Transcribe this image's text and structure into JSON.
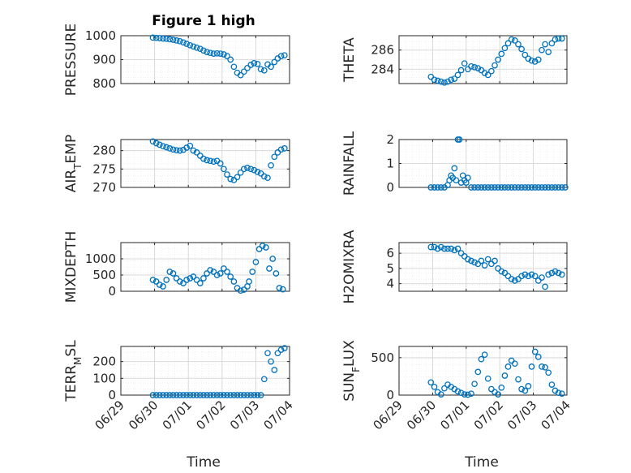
{
  "figure": {
    "title": "Figure 1 high",
    "xlabel": "Time",
    "marker_color": "#0072BD",
    "xticks": [
      "06/29",
      "06/30",
      "07/01",
      "07/02",
      "07/03",
      "07/04"
    ]
  },
  "chart_data": [
    {
      "type": "scatter",
      "title": "Figure 1 high",
      "xlabel": "",
      "ylabel": "PRESSURE",
      "xlim": [
        0,
        5
      ],
      "ylim": [
        800,
        1000
      ],
      "yticks": [
        800,
        900,
        1000
      ],
      "grid": true,
      "x": [
        0.95,
        1.05,
        1.15,
        1.25,
        1.35,
        1.45,
        1.55,
        1.65,
        1.75,
        1.85,
        1.95,
        2.05,
        2.15,
        2.25,
        2.35,
        2.45,
        2.55,
        2.65,
        2.75,
        2.85,
        2.95,
        3.05,
        3.15,
        3.25,
        3.35,
        3.45,
        3.55,
        3.65,
        3.75,
        3.85,
        3.95,
        4.05,
        4.15,
        4.25,
        4.35,
        4.45,
        4.55,
        4.65,
        4.75,
        4.85
      ],
      "y": [
        992,
        991,
        990,
        988,
        987,
        985,
        983,
        980,
        977,
        972,
        966,
        960,
        955,
        950,
        945,
        938,
        932,
        928,
        925,
        926,
        925,
        922,
        915,
        900,
        870,
        845,
        835,
        850,
        865,
        878,
        885,
        882,
        860,
        855,
        880,
        870,
        890,
        905,
        915,
        918
      ]
    },
    {
      "type": "scatter",
      "ylabel": "THETA",
      "xlim": [
        0,
        5
      ],
      "ylim": [
        282.5,
        287.5
      ],
      "yticks": [
        284,
        286
      ],
      "grid": true,
      "x": [
        0.95,
        1.05,
        1.15,
        1.25,
        1.35,
        1.45,
        1.55,
        1.65,
        1.75,
        1.85,
        1.95,
        2.05,
        2.15,
        2.25,
        2.35,
        2.45,
        2.55,
        2.65,
        2.75,
        2.85,
        2.95,
        3.05,
        3.15,
        3.25,
        3.35,
        3.45,
        3.55,
        3.65,
        3.75,
        3.85,
        3.95,
        4.05,
        4.15,
        4.25,
        4.35,
        4.45,
        4.55,
        4.65,
        4.75,
        4.85
      ],
      "y": [
        283.2,
        282.9,
        282.8,
        282.7,
        282.6,
        282.7,
        282.9,
        283.0,
        283.4,
        283.9,
        284.6,
        284.0,
        284.3,
        284.2,
        284.1,
        283.9,
        283.6,
        283.4,
        283.8,
        284.4,
        285.0,
        285.6,
        286.2,
        286.7,
        287.1,
        287.0,
        286.6,
        286.1,
        285.5,
        285.1,
        284.9,
        284.8,
        285.0,
        286.0,
        286.6,
        285.8,
        286.7,
        287.1,
        287.2,
        287.2
      ]
    },
    {
      "type": "scatter",
      "ylabel": "AIR_TEMP",
      "xlim": [
        0,
        5
      ],
      "ylim": [
        270,
        283
      ],
      "yticks": [
        270,
        275,
        280
      ],
      "grid": true,
      "x": [
        0.95,
        1.05,
        1.15,
        1.25,
        1.35,
        1.45,
        1.55,
        1.65,
        1.75,
        1.85,
        1.95,
        2.05,
        2.15,
        2.25,
        2.35,
        2.45,
        2.55,
        2.65,
        2.75,
        2.85,
        2.95,
        3.05,
        3.15,
        3.25,
        3.35,
        3.45,
        3.55,
        3.65,
        3.75,
        3.85,
        3.95,
        4.05,
        4.15,
        4.25,
        4.35,
        4.45,
        4.55,
        4.65,
        4.75,
        4.85
      ],
      "y": [
        282.5,
        282.0,
        281.6,
        281.2,
        280.9,
        280.6,
        280.3,
        280.1,
        280.0,
        280.2,
        280.8,
        281.3,
        280.0,
        279.5,
        278.6,
        277.8,
        277.4,
        277.2,
        277.0,
        277.2,
        276.5,
        275.0,
        273.5,
        272.3,
        272.0,
        272.8,
        274.0,
        275.0,
        275.3,
        275.0,
        274.7,
        274.2,
        273.8,
        273.0,
        272.6,
        276.0,
        278.3,
        279.5,
        280.3,
        280.6
      ]
    },
    {
      "type": "scatter",
      "ylabel": "RAINFALL",
      "xlim": [
        0,
        5
      ],
      "ylim": [
        0,
        2
      ],
      "yticks": [
        0,
        1,
        2
      ],
      "grid": true,
      "x": [
        0.95,
        1.05,
        1.15,
        1.25,
        1.35,
        1.45,
        1.5,
        1.55,
        1.6,
        1.65,
        1.7,
        1.75,
        1.8,
        1.85,
        1.9,
        1.95,
        2.0,
        2.05,
        2.15,
        2.25,
        2.35,
        2.45,
        2.55,
        2.65,
        2.75,
        2.85,
        2.95,
        3.05,
        3.15,
        3.25,
        3.35,
        3.45,
        3.55,
        3.65,
        3.75,
        3.85,
        3.95,
        4.05,
        4.15,
        4.25,
        4.35,
        4.45,
        4.55,
        4.65,
        4.75,
        4.85,
        4.95
      ],
      "y": [
        0,
        0,
        0,
        0,
        0,
        0.1,
        0.3,
        0.5,
        0.4,
        0.8,
        0.3,
        2.0,
        2.0,
        0.2,
        0.5,
        0.3,
        0.2,
        0.4,
        0,
        0,
        0,
        0,
        0,
        0,
        0,
        0,
        0,
        0,
        0,
        0,
        0,
        0,
        0,
        0,
        0,
        0,
        0,
        0,
        0,
        0,
        0,
        0,
        0,
        0,
        0,
        0,
        0
      ]
    },
    {
      "type": "scatter",
      "ylabel": "MIXDEPTH",
      "xlim": [
        0,
        5
      ],
      "ylim": [
        0,
        1500
      ],
      "yticks": [
        0,
        500,
        1000
      ],
      "grid": true,
      "x": [
        0.95,
        1.05,
        1.15,
        1.25,
        1.35,
        1.45,
        1.55,
        1.65,
        1.75,
        1.85,
        1.95,
        2.05,
        2.15,
        2.25,
        2.35,
        2.45,
        2.55,
        2.65,
        2.75,
        2.85,
        2.95,
        3.05,
        3.15,
        3.25,
        3.35,
        3.45,
        3.55,
        3.65,
        3.75,
        3.8,
        3.9,
        4.0,
        4.1,
        4.2,
        4.3,
        4.4,
        4.5,
        4.6,
        4.7,
        4.8
      ],
      "y": [
        350,
        300,
        200,
        150,
        350,
        600,
        550,
        400,
        300,
        250,
        350,
        400,
        450,
        350,
        250,
        400,
        550,
        650,
        600,
        500,
        550,
        700,
        600,
        450,
        300,
        100,
        20,
        50,
        150,
        300,
        600,
        900,
        1300,
        1400,
        1350,
        700,
        1000,
        550,
        100,
        60
      ]
    },
    {
      "type": "scatter",
      "ylabel": "H2OMIXRA",
      "xlim": [
        0,
        5
      ],
      "ylim": [
        3.5,
        6.7
      ],
      "yticks": [
        4,
        5,
        6
      ],
      "grid": true,
      "x": [
        0.95,
        1.05,
        1.15,
        1.25,
        1.35,
        1.45,
        1.55,
        1.65,
        1.75,
        1.85,
        1.95,
        2.05,
        2.15,
        2.25,
        2.35,
        2.45,
        2.55,
        2.65,
        2.75,
        2.85,
        2.95,
        3.05,
        3.15,
        3.25,
        3.35,
        3.45,
        3.55,
        3.65,
        3.75,
        3.85,
        3.95,
        4.05,
        4.15,
        4.25,
        4.35,
        4.45,
        4.55,
        4.65,
        4.75,
        4.85
      ],
      "y": [
        6.4,
        6.4,
        6.3,
        6.4,
        6.3,
        6.3,
        6.3,
        6.2,
        6.3,
        6.0,
        5.8,
        5.6,
        5.5,
        5.4,
        5.3,
        5.5,
        5.2,
        5.6,
        5.3,
        5.5,
        5.0,
        4.8,
        4.7,
        4.5,
        4.3,
        4.2,
        4.3,
        4.5,
        4.6,
        4.5,
        4.6,
        4.5,
        4.2,
        4.4,
        3.8,
        4.6,
        4.7,
        4.8,
        4.7,
        4.6
      ]
    },
    {
      "type": "scatter",
      "ylabel": "TERR_MSL",
      "xlim": [
        0,
        5
      ],
      "ylim": [
        0,
        290
      ],
      "yticks": [
        0,
        100,
        200
      ],
      "grid": true,
      "x": [
        0.95,
        1.05,
        1.15,
        1.25,
        1.35,
        1.45,
        1.55,
        1.65,
        1.75,
        1.85,
        1.95,
        2.05,
        2.15,
        2.25,
        2.35,
        2.45,
        2.55,
        2.65,
        2.75,
        2.85,
        2.95,
        3.05,
        3.15,
        3.25,
        3.35,
        3.45,
        3.55,
        3.65,
        3.75,
        3.85,
        3.95,
        4.05,
        4.15,
        4.25,
        4.35,
        4.45,
        4.55,
        4.65,
        4.75,
        4.85
      ],
      "y": [
        0,
        0,
        0,
        0,
        0,
        0,
        0,
        0,
        0,
        0,
        0,
        0,
        0,
        0,
        0,
        0,
        0,
        0,
        0,
        0,
        0,
        0,
        0,
        0,
        0,
        0,
        0,
        0,
        0,
        0,
        0,
        0,
        0,
        95,
        250,
        200,
        150,
        250,
        270,
        280
      ]
    },
    {
      "type": "scatter",
      "ylabel": "SUN_FLUX",
      "xlim": [
        0,
        5
      ],
      "ylim": [
        0,
        650
      ],
      "yticks": [
        0,
        500
      ],
      "grid": true,
      "x": [
        0.95,
        1.05,
        1.15,
        1.25,
        1.35,
        1.45,
        1.55,
        1.65,
        1.75,
        1.85,
        1.95,
        2.05,
        2.15,
        2.25,
        2.35,
        2.45,
        2.55,
        2.65,
        2.75,
        2.85,
        2.95,
        3.05,
        3.15,
        3.25,
        3.35,
        3.45,
        3.55,
        3.65,
        3.75,
        3.85,
        3.95,
        4.05,
        4.15,
        4.25,
        4.35,
        4.45,
        4.55,
        4.65,
        4.75,
        4.85
      ],
      "y": [
        170,
        110,
        40,
        10,
        90,
        140,
        110,
        80,
        50,
        30,
        10,
        5,
        20,
        150,
        310,
        480,
        540,
        220,
        80,
        40,
        10,
        100,
        260,
        380,
        460,
        420,
        210,
        80,
        60,
        120,
        380,
        580,
        510,
        380,
        370,
        300,
        140,
        60,
        30,
        20
      ]
    }
  ]
}
